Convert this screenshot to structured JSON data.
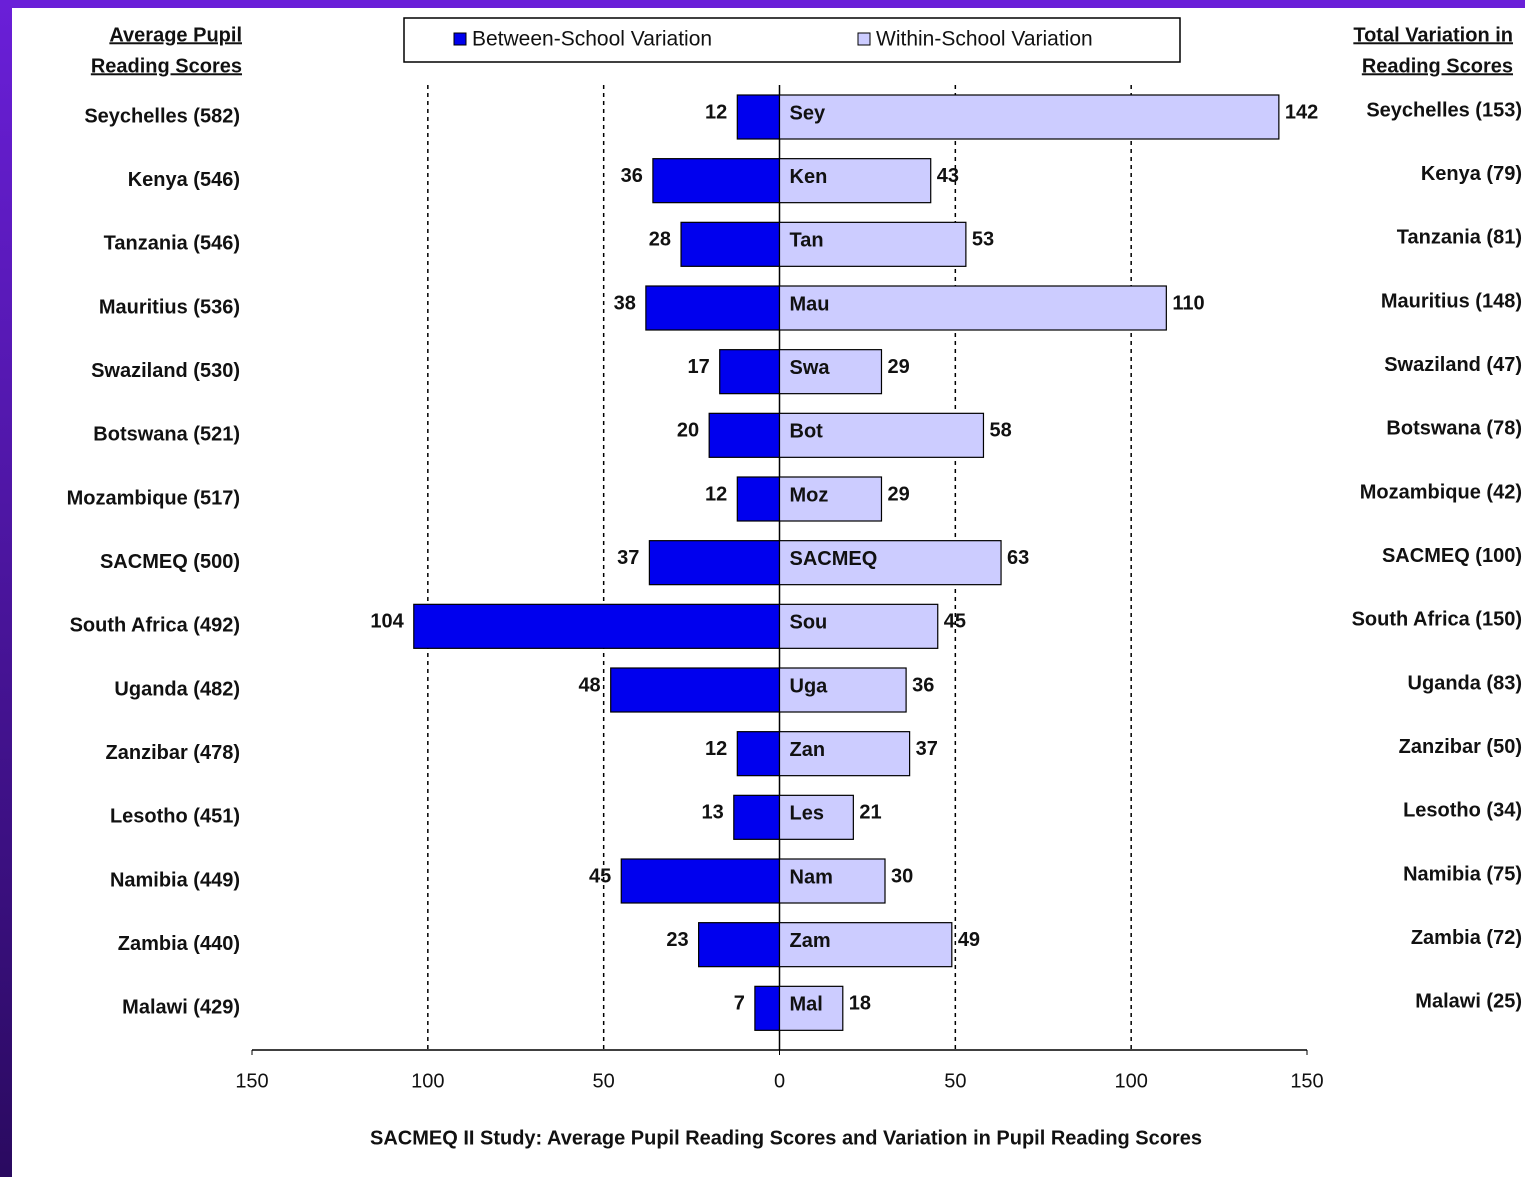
{
  "chart_data": {
    "type": "butterfly-bar",
    "title": "SACMEQ II Study: Average Pupil Reading Scores and Variation in Pupil Reading Scores",
    "left_header": [
      "Average Pupil",
      "Reading Scores"
    ],
    "right_header": [
      "Total Variation in",
      "Reading Scores"
    ],
    "categories": [
      "Sey",
      "Ken",
      "Tan",
      "Mau",
      "Swa",
      "Bot",
      "Moz",
      "SACMEQ",
      "Sou",
      "Uga",
      "Zan",
      "Les",
      "Nam",
      "Zam",
      "Mal"
    ],
    "left_labels": [
      "Seychelles (582)",
      "Kenya (546)",
      "Tanzania (546)",
      "Mauritius (536)",
      "Swaziland (530)",
      "Botswana (521)",
      "Mozambique (517)",
      "SACMEQ (500)",
      "South Africa (492)",
      "Uganda (482)",
      "Zanzibar (478)",
      "Lesotho (451)",
      "Namibia (449)",
      "Zambia (440)",
      "Malawi (429)"
    ],
    "right_labels": [
      "Seychelles (153)",
      "Kenya (79)",
      "Tanzania (81)",
      "Mauritius (148)",
      "Swaziland (47)",
      "Botswana (78)",
      "Mozambique (42)",
      "SACMEQ (100)",
      "South Africa (150)",
      "Uganda (83)",
      "Zanzibar (50)",
      "Lesotho (34)",
      "Namibia (75)",
      "Zambia (72)",
      "Malawi (25)"
    ],
    "series": [
      {
        "name": "Between-School Variation",
        "color": "#0000ee",
        "values": [
          -12,
          -36,
          -28,
          -38,
          -17,
          -20,
          -12,
          -37,
          -104,
          -48,
          -12,
          -13,
          -45,
          -23,
          -7
        ],
        "value_labels": [
          "12",
          "36",
          "28",
          "38",
          "17",
          "20",
          "12",
          "37",
          "104",
          "48",
          "12",
          "13",
          "45",
          "23",
          "7"
        ]
      },
      {
        "name": "Within-School Variation",
        "color": "#ccccff",
        "values": [
          142,
          43,
          53,
          110,
          29,
          58,
          29,
          63,
          45,
          36,
          37,
          21,
          30,
          49,
          18
        ]
      }
    ],
    "xlim": [
      -150,
      150
    ],
    "xticks": [
      {
        "value": -150,
        "label": "150"
      },
      {
        "value": -100,
        "label": "100"
      },
      {
        "value": -50,
        "label": "50"
      },
      0,
      50,
      100,
      150
    ],
    "grid": true
  }
}
